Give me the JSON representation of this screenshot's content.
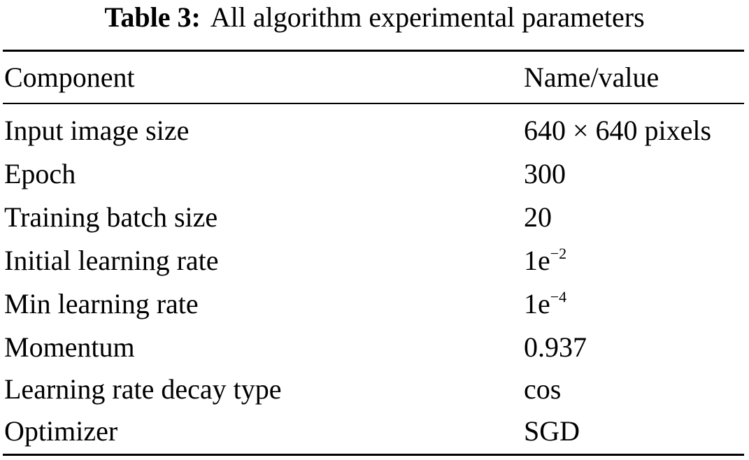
{
  "caption": {
    "label": "Table 3:",
    "text": "All algorithm experimental parameters"
  },
  "table": {
    "headers": [
      "Component",
      "Name/value"
    ],
    "rows": [
      {
        "component": "Input image size",
        "value": "640 × 640 pixels"
      },
      {
        "component": "Epoch",
        "value": "300"
      },
      {
        "component": "Training batch size",
        "value": "20"
      },
      {
        "component": "Initial learning rate",
        "value": "1e",
        "exponent": "−2"
      },
      {
        "component": "Min learning rate",
        "value": "1e",
        "exponent": "−4"
      },
      {
        "component": "Momentum",
        "value": "0.937"
      },
      {
        "component": "Learning rate decay type",
        "value": "cos"
      },
      {
        "component": "Optimizer",
        "value": "SGD"
      }
    ]
  }
}
